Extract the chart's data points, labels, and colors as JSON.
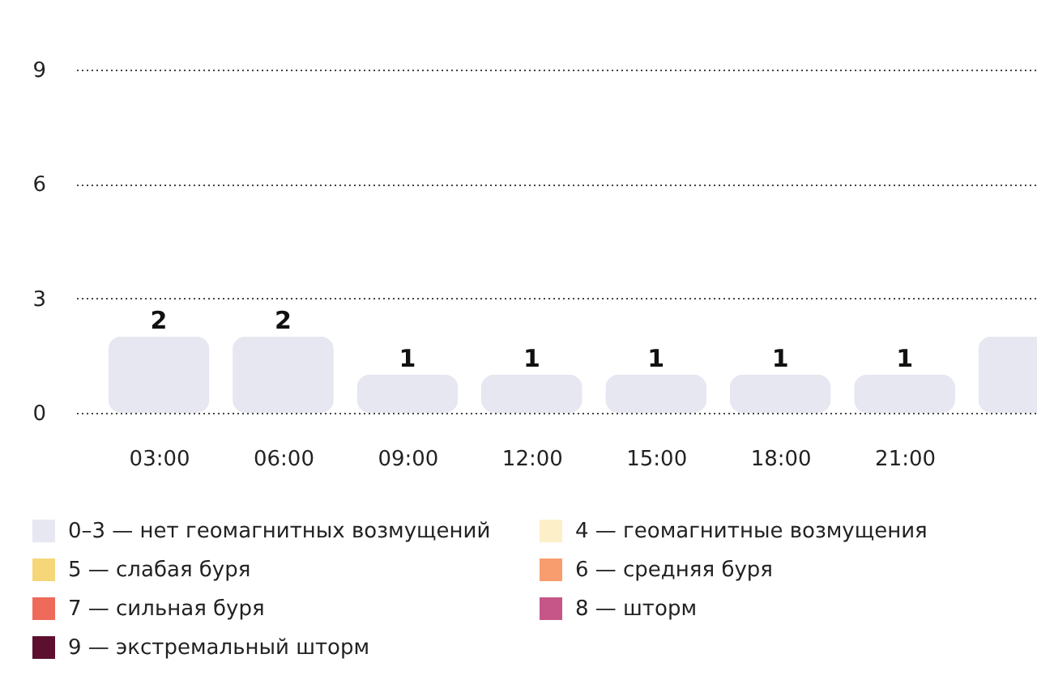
{
  "chart_data": {
    "type": "bar",
    "x": [
      3,
      6,
      9,
      12,
      15,
      18,
      21,
      24
    ],
    "xlim": [
      1.2,
      24
    ],
    "xticks": [
      {
        "value": 3,
        "label": "03:00"
      },
      {
        "value": 6,
        "label": "06:00"
      },
      {
        "value": 9,
        "label": "09:00"
      },
      {
        "value": 12,
        "label": "12:00"
      },
      {
        "value": 15,
        "label": "15:00"
      },
      {
        "value": 18,
        "label": "18:00"
      },
      {
        "value": 21,
        "label": "21:00"
      }
    ],
    "ylim": [
      0,
      9
    ],
    "yticks": [
      0,
      3,
      6,
      9
    ],
    "series": [
      {
        "name": "0–3 — нет геомагнитных возмущений",
        "color": "#e6e7f0",
        "values": [
          2,
          2,
          1,
          1,
          1,
          1,
          1,
          2
        ],
        "value_labels": [
          "2",
          "2",
          "1",
          "1",
          "1",
          "1",
          "1",
          null
        ]
      },
      {
        "name": "4 — геомагнитные возмущения",
        "color": "#fdefc8",
        "values": [
          null,
          null,
          null,
          null,
          null,
          null,
          null,
          null
        ]
      },
      {
        "name": "5 — слабая буря",
        "color": "#f5d77a",
        "values": [
          null,
          null,
          null,
          null,
          null,
          null,
          null,
          null
        ]
      },
      {
        "name": "6 — средняя буря",
        "color": "#f79d6e",
        "values": [
          null,
          null,
          null,
          null,
          null,
          null,
          null,
          null
        ]
      },
      {
        "name": "7 — сильная буря",
        "color": "#ee6a5a",
        "values": [
          null,
          null,
          null,
          null,
          null,
          null,
          null,
          null
        ]
      },
      {
        "name": "8 — шторм",
        "color": "#c55687",
        "values": [
          null,
          null,
          null,
          null,
          null,
          null,
          null,
          null
        ]
      },
      {
        "name": "9 — экстремальный шторм",
        "color": "#5c0f2e",
        "values": [
          null,
          null,
          null,
          null,
          null,
          null,
          null,
          null
        ]
      }
    ],
    "grid": "y",
    "legend": "bottom"
  }
}
